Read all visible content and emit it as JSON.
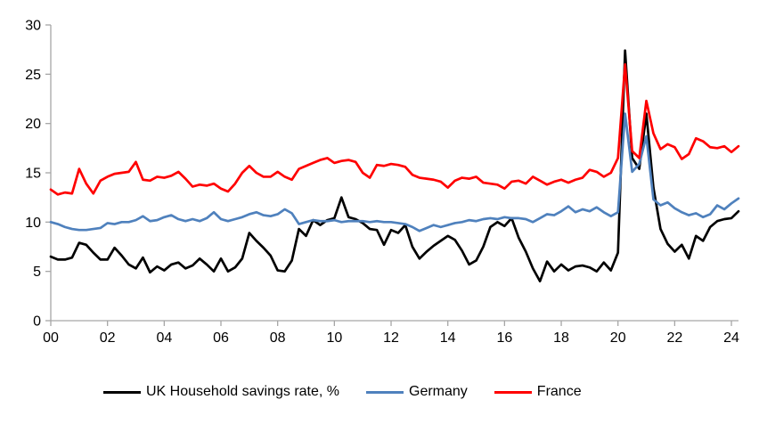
{
  "chart_data": {
    "type": "line",
    "title": "",
    "frequency": "quarterly",
    "x_start": "2000Q1",
    "x_end": "2024Q2",
    "x_tick_labels": [
      "00",
      "02",
      "04",
      "06",
      "08",
      "10",
      "12",
      "14",
      "16",
      "18",
      "20",
      "22",
      "24"
    ],
    "y_ticks": [
      0,
      5,
      10,
      15,
      20,
      25,
      30
    ],
    "ylim": [
      0,
      30
    ],
    "grid": false,
    "legend_position": "bottom",
    "axis_color": "#A6A6A6",
    "series": [
      {
        "key": "uk",
        "name": "UK Household savings rate, %",
        "color": "#000000",
        "values": [
          6.5,
          6.2,
          6.2,
          6.4,
          7.9,
          7.7,
          6.9,
          6.2,
          6.2,
          7.4,
          6.6,
          5.7,
          5.3,
          6.4,
          4.9,
          5.5,
          5.1,
          5.7,
          5.9,
          5.3,
          5.6,
          6.3,
          5.7,
          5.0,
          6.3,
          5.0,
          5.4,
          6.3,
          8.9,
          8.1,
          7.4,
          6.6,
          5.1,
          5.0,
          6.1,
          9.3,
          8.6,
          10.2,
          9.7,
          10.2,
          10.4,
          12.5,
          10.5,
          10.3,
          9.9,
          9.3,
          9.2,
          7.7,
          9.2,
          8.9,
          9.7,
          7.5,
          6.3,
          7.0,
          7.6,
          8.1,
          8.6,
          8.2,
          7.1,
          5.7,
          6.1,
          7.5,
          9.5,
          10.0,
          9.6,
          10.4,
          8.4,
          7.0,
          5.3,
          4.0,
          6.0,
          5.0,
          5.7,
          5.1,
          5.5,
          5.6,
          5.4,
          5.0,
          5.9,
          5.1,
          6.9,
          27.4,
          16.5,
          15.4,
          21.0,
          13.5,
          9.3,
          7.8,
          7.0,
          7.7,
          6.3,
          8.6,
          8.1,
          9.5,
          10.1,
          10.3,
          10.4,
          11.1
        ]
      },
      {
        "key": "germany",
        "name": "Germany",
        "color": "#4F81BD",
        "values": [
          10.0,
          9.8,
          9.5,
          9.3,
          9.2,
          9.2,
          9.3,
          9.4,
          9.9,
          9.8,
          10.0,
          10.0,
          10.2,
          10.6,
          10.1,
          10.2,
          10.5,
          10.7,
          10.3,
          10.1,
          10.3,
          10.1,
          10.4,
          11.0,
          10.3,
          10.1,
          10.3,
          10.5,
          10.8,
          11.0,
          10.7,
          10.6,
          10.8,
          11.3,
          10.9,
          9.8,
          10.0,
          10.2,
          10.1,
          10.1,
          10.2,
          10.0,
          10.1,
          10.1,
          10.1,
          10.0,
          10.1,
          10.0,
          10.0,
          9.9,
          9.8,
          9.5,
          9.1,
          9.4,
          9.7,
          9.5,
          9.7,
          9.9,
          10.0,
          10.2,
          10.1,
          10.3,
          10.4,
          10.3,
          10.5,
          10.4,
          10.4,
          10.3,
          10.0,
          10.4,
          10.8,
          10.7,
          11.1,
          11.6,
          11.0,
          11.3,
          11.1,
          11.5,
          11.0,
          10.6,
          11.0,
          21.0,
          15.1,
          15.9,
          18.7,
          12.3,
          11.7,
          12.0,
          11.4,
          11.0,
          10.7,
          10.9,
          10.5,
          10.8,
          11.7,
          11.3,
          11.9,
          12.4
        ]
      },
      {
        "key": "france",
        "name": "France",
        "color": "#FF0000",
        "values": [
          13.3,
          12.8,
          13.0,
          12.9,
          15.4,
          13.9,
          12.9,
          14.2,
          14.6,
          14.9,
          15.0,
          15.1,
          16.1,
          14.3,
          14.2,
          14.6,
          14.5,
          14.7,
          15.1,
          14.4,
          13.6,
          13.8,
          13.7,
          13.9,
          13.4,
          13.1,
          13.9,
          15.0,
          15.7,
          15.0,
          14.6,
          14.6,
          15.1,
          14.6,
          14.3,
          15.4,
          15.7,
          16.0,
          16.3,
          16.5,
          16.0,
          16.2,
          16.3,
          16.1,
          15.0,
          14.5,
          15.8,
          15.7,
          15.9,
          15.8,
          15.6,
          14.8,
          14.5,
          14.4,
          14.3,
          14.1,
          13.5,
          14.2,
          14.5,
          14.4,
          14.6,
          14.0,
          13.9,
          13.8,
          13.4,
          14.1,
          14.2,
          13.9,
          14.6,
          14.2,
          13.8,
          14.1,
          14.3,
          14.0,
          14.3,
          14.5,
          15.3,
          15.1,
          14.6,
          15.0,
          16.5,
          26.0,
          17.2,
          16.5,
          22.3,
          19.0,
          17.4,
          17.9,
          17.6,
          16.4,
          16.9,
          18.5,
          18.2,
          17.6,
          17.5,
          17.7,
          17.1,
          17.7
        ]
      }
    ]
  }
}
